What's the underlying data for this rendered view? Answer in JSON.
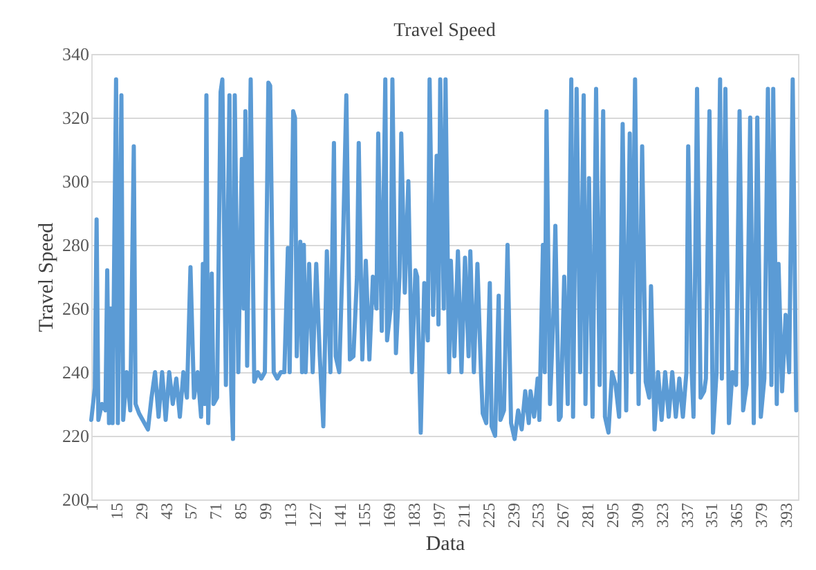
{
  "chart_data": {
    "type": "line",
    "title": "Travel Speed",
    "xlabel": "Data",
    "ylabel": "Travel Speed",
    "x": [
      1,
      3,
      4,
      5,
      7,
      9,
      10,
      11,
      12,
      13,
      14,
      15,
      16,
      18,
      19,
      21,
      23,
      25,
      26,
      28,
      30,
      33,
      35,
      37,
      39,
      41,
      43,
      45,
      47,
      49,
      51,
      53,
      55,
      57,
      59,
      61,
      63,
      64,
      65,
      66,
      67,
      69,
      70,
      72,
      74,
      75,
      77,
      79,
      80,
      81,
      82,
      84,
      86,
      87,
      88,
      89,
      91,
      93,
      95,
      97,
      99,
      101,
      102,
      104,
      106,
      108,
      110,
      112,
      113,
      115,
      116,
      117,
      119,
      120,
      121,
      122,
      124,
      126,
      128,
      130,
      132,
      134,
      136,
      138,
      139,
      141,
      143,
      145,
      147,
      149,
      151,
      152,
      154,
      156,
      158,
      160,
      162,
      163,
      165,
      167,
      168,
      170,
      171,
      173,
      175,
      176,
      178,
      180,
      182,
      184,
      185,
      187,
      189,
      191,
      192,
      194,
      196,
      197,
      198,
      200,
      201,
      203,
      204,
      206,
      208,
      210,
      212,
      214,
      215,
      217,
      219,
      221,
      222,
      224,
      226,
      227,
      229,
      231,
      232,
      234,
      236,
      238,
      240,
      242,
      244,
      246,
      248,
      249,
      251,
      253,
      254,
      256,
      257,
      258,
      260,
      262,
      263,
      265,
      266,
      268,
      270,
      272,
      273,
      275,
      277,
      279,
      280,
      282,
      284,
      286,
      288,
      290,
      291,
      293,
      295,
      297,
      299,
      301,
      303,
      305,
      306,
      308,
      310,
      312,
      314,
      316,
      317,
      319,
      321,
      323,
      325,
      327,
      329,
      331,
      333,
      335,
      337,
      338,
      340,
      341,
      343,
      345,
      347,
      348,
      350,
      352,
      354,
      356,
      357,
      359,
      361,
      363,
      365,
      367,
      369,
      371,
      373,
      375,
      377,
      379,
      381,
      383,
      385,
      386,
      388,
      389,
      391,
      393,
      395,
      397,
      399
    ],
    "series": [
      {
        "color": "#5b9bd5",
        "values": [
          225,
          235,
          288,
          225,
          230,
          228,
          272,
          224,
          260,
          224,
          280,
          332,
          224,
          327,
          225,
          240,
          228,
          311,
          230,
          227,
          225,
          222,
          232,
          240,
          226,
          240,
          225,
          240,
          230,
          238,
          226,
          240,
          232,
          273,
          232,
          240,
          226,
          274,
          230,
          327,
          224,
          271,
          230,
          232,
          328,
          332,
          236,
          327,
          235,
          219,
          327,
          240,
          307,
          260,
          322,
          242,
          332,
          237,
          240,
          238,
          240,
          331,
          330,
          240,
          238,
          240,
          240,
          279,
          240,
          322,
          320,
          245,
          281,
          240,
          280,
          240,
          274,
          240,
          274,
          245,
          223,
          278,
          240,
          312,
          245,
          240,
          278,
          327,
          244,
          245,
          270,
          312,
          244,
          275,
          244,
          270,
          260,
          315,
          253,
          332,
          250,
          260,
          332,
          246,
          270,
          315,
          265,
          300,
          240,
          272,
          270,
          221,
          268,
          250,
          332,
          258,
          308,
          255,
          332,
          260,
          332,
          240,
          275,
          245,
          278,
          240,
          276,
          245,
          278,
          240,
          274,
          240,
          227,
          224,
          268,
          223,
          220,
          264,
          225,
          228,
          280,
          224,
          219,
          228,
          222,
          234,
          224,
          234,
          226,
          238,
          225,
          280,
          240,
          322,
          230,
          260,
          286,
          225,
          226,
          270,
          230,
          332,
          226,
          329,
          240,
          327,
          230,
          301,
          226,
          329,
          236,
          322,
          226,
          221,
          240,
          236,
          226,
          318,
          228,
          315,
          240,
          332,
          230,
          311,
          237,
          232,
          267,
          222,
          240,
          225,
          240,
          226,
          240,
          226,
          238,
          226,
          240,
          311,
          240,
          226,
          329,
          232,
          234,
          238,
          322,
          221,
          240,
          332,
          238,
          329,
          224,
          240,
          236,
          322,
          228,
          236,
          320,
          224,
          320,
          226,
          238,
          329,
          236,
          329,
          230,
          274,
          234,
          258,
          240,
          332,
          228
        ]
      }
    ],
    "xlim": [
      1,
      400
    ],
    "xticks": [
      1,
      15,
      29,
      43,
      57,
      71,
      85,
      99,
      113,
      127,
      141,
      155,
      169,
      183,
      197,
      211,
      225,
      239,
      253,
      267,
      281,
      295,
      309,
      323,
      337,
      351,
      365,
      379,
      393
    ],
    "ylim": [
      200,
      340
    ],
    "yticks": [
      200,
      220,
      240,
      260,
      280,
      300,
      320,
      340
    ],
    "grid": "y",
    "legend": false
  }
}
